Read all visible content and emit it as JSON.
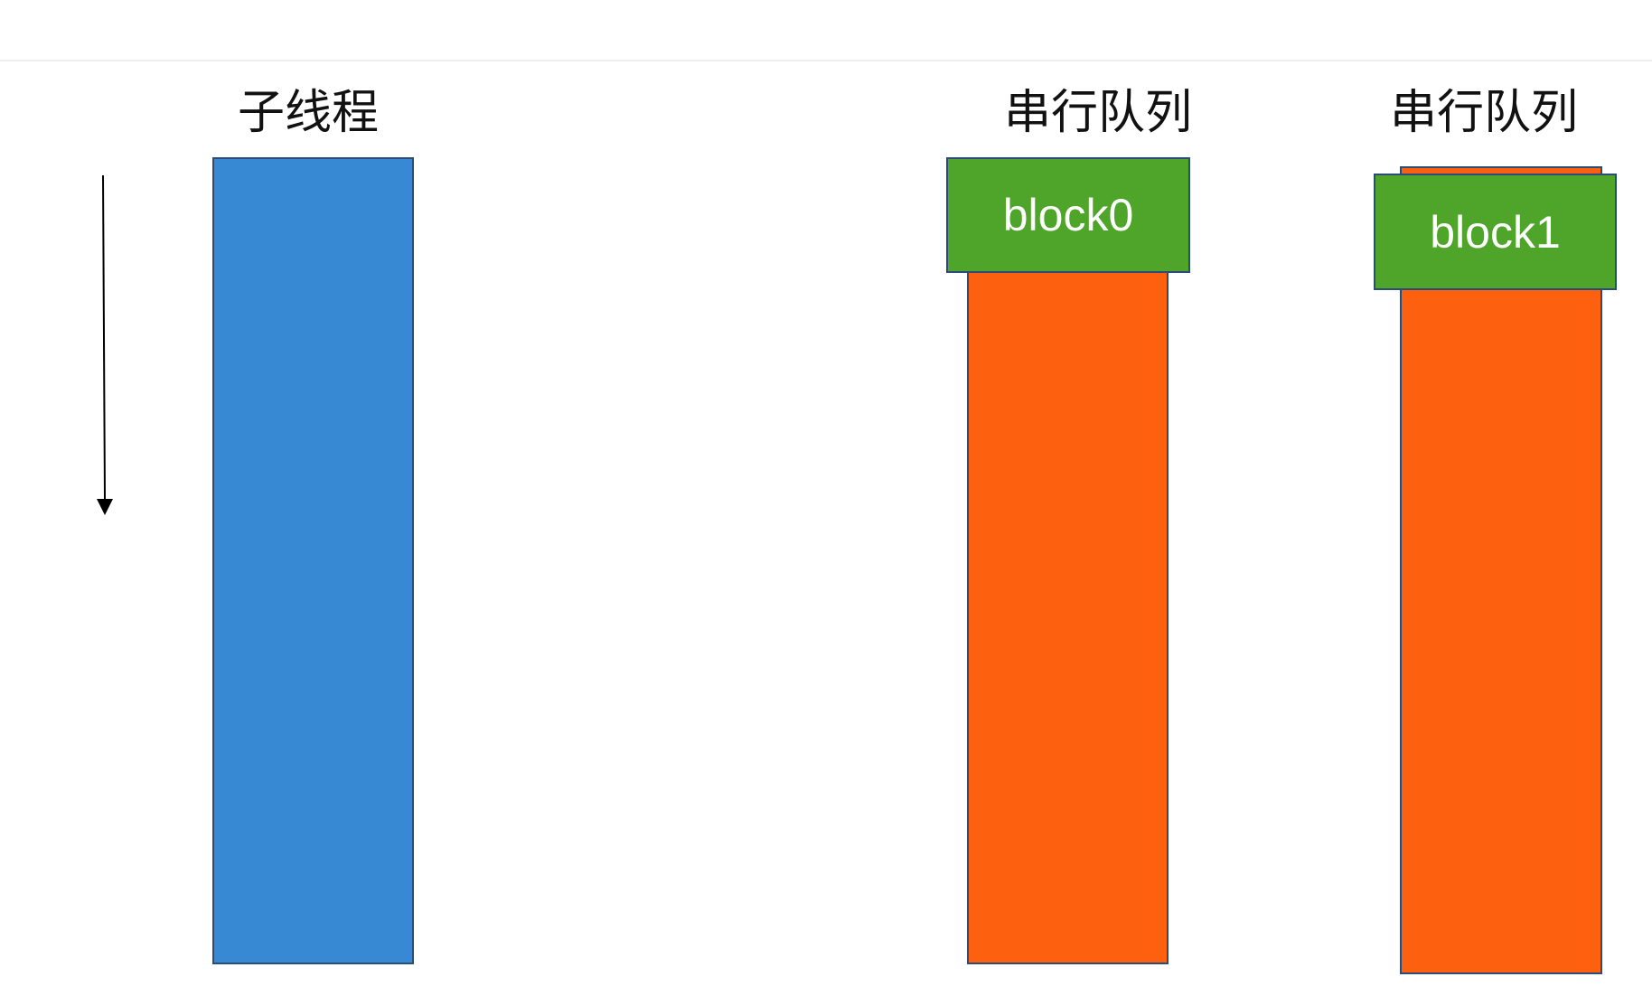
{
  "labels": {
    "thread": "子线程",
    "queue_1": "串行队列",
    "queue_2": "串行队列"
  },
  "blocks": {
    "block_0": "block0",
    "block_1": "block1"
  },
  "colors": {
    "thread_bar": "#3689d2",
    "queue_bar": "#fd600f",
    "block": "#4fa42a",
    "border": "#2c4c78",
    "arrow": "#000000"
  },
  "icons": {
    "time_arrow": "down-arrow-icon"
  }
}
